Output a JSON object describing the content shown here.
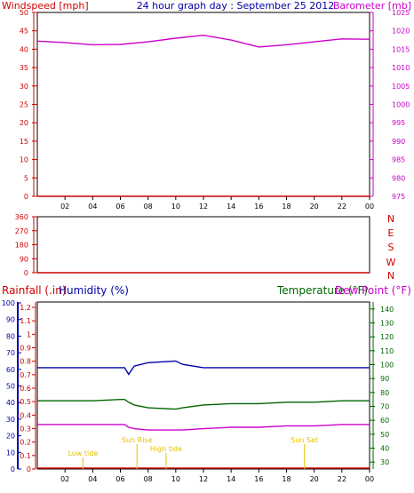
{
  "colors": {
    "red": "#cc0000",
    "blue": "#0000aa",
    "magenta": "#cc00cc",
    "green": "#006600",
    "pink": "#cc00cc",
    "yellow": "#e6c200",
    "grid": "#bbbbbb",
    "frame": "#000000"
  },
  "chart_data": [
    {
      "type": "line",
      "title": "24 hour graph day : September 25 2012",
      "ylabel": "Windspeed [mph]",
      "y2label": "Barometer [mb]",
      "x": [
        0,
        2,
        4,
        6,
        8,
        10,
        12,
        14,
        16,
        18,
        20,
        22,
        24
      ],
      "xticks": [
        "02",
        "04",
        "06",
        "08",
        "10",
        "12",
        "14",
        "16",
        "18",
        "20",
        "22",
        "00"
      ],
      "yticks": [
        "0",
        "5",
        "10",
        "15",
        "20",
        "25",
        "30",
        "35",
        "40",
        "45",
        "50"
      ],
      "y2ticks": [
        "975",
        "980",
        "985",
        "990",
        "995",
        "1000",
        "1005",
        "1010",
        "1015",
        "1020",
        "1025"
      ],
      "ylim": [
        0,
        50
      ],
      "y2lim": [
        975,
        1025
      ],
      "series": [
        {
          "axis": "y2",
          "color": "magenta",
          "values": [
            1017.2,
            1016.8,
            1016.2,
            1016.3,
            1017.0,
            1018.0,
            1018.8,
            1017.5,
            1015.6,
            1016.2,
            1017.0,
            1017.8,
            1017.7
          ]
        },
        {
          "axis": "y",
          "color": "red",
          "values": [
            0,
            0,
            0,
            0,
            0,
            0,
            0,
            0,
            0,
            0,
            0,
            0,
            0
          ]
        }
      ]
    },
    {
      "type": "line",
      "yticks": [
        "0",
        "90",
        "180",
        "270",
        "360"
      ],
      "ylim": [
        0,
        360
      ],
      "directions": [
        "N",
        "W",
        "S",
        "E",
        "N"
      ],
      "xticks": [
        "02",
        "04",
        "06",
        "08",
        "10",
        "12",
        "14",
        "16",
        "18",
        "20",
        "22",
        "00"
      ],
      "series": [
        {
          "color": "red",
          "values": [
            0,
            0,
            0,
            0,
            0,
            0,
            0,
            0,
            0,
            0,
            0,
            0,
            0
          ]
        }
      ]
    },
    {
      "type": "line",
      "ylabel": "Rainfall (.in)",
      "ylabel2": "Humidity (%)",
      "y2label": "Temperature (°F)",
      "y2label2": "Dew Point (°F)",
      "x": [
        0,
        2,
        4,
        6,
        6.3,
        6.6,
        7,
        8,
        10,
        10.5,
        12,
        14,
        16,
        18,
        20,
        22,
        24
      ],
      "xticks": [
        "02",
        "04",
        "06",
        "08",
        "10",
        "12",
        "14",
        "16",
        "18",
        "20",
        "22",
        "00"
      ],
      "humidity_ticks": [
        "0",
        "10",
        "20",
        "30",
        "40",
        "50",
        "60",
        "70",
        "80",
        "90",
        "100"
      ],
      "rain_ticks": [
        "0",
        "0.1",
        "0.2",
        "0.3",
        "0.4",
        "0.5",
        "0.6",
        "0.7",
        "0.8",
        "0.9",
        "1",
        "1.1",
        "1.2"
      ],
      "temp_ticks": [
        "30",
        "40",
        "50",
        "60",
        "70",
        "80",
        "90",
        "100",
        "110",
        "120",
        "130",
        "140"
      ],
      "humidity_lim": [
        0,
        100
      ],
      "temp_lim": [
        25,
        145
      ],
      "series": [
        {
          "axis": "humidity",
          "color": "blue",
          "values": [
            61,
            61,
            61,
            61,
            61,
            57,
            62,
            64,
            65,
            63,
            61,
            61,
            61,
            61,
            61,
            61,
            61
          ]
        },
        {
          "axis": "temp",
          "color": "green",
          "values": [
            74,
            74,
            74,
            75,
            75,
            73,
            71,
            69,
            68,
            69,
            71,
            72,
            72,
            73,
            73,
            74,
            74
          ]
        },
        {
          "axis": "temp",
          "color": "pink",
          "values": [
            57,
            57,
            57,
            57,
            57,
            55,
            54,
            53,
            53,
            53,
            54,
            55,
            55,
            56,
            56,
            57,
            57
          ]
        },
        {
          "axis": "rain",
          "color": "red",
          "values": [
            0,
            0,
            0,
            0,
            0,
            0,
            0,
            0,
            0,
            0,
            0,
            0,
            0,
            0,
            0,
            0,
            0
          ]
        }
      ],
      "annotations": [
        {
          "label": "Low tide",
          "x": 3.3
        },
        {
          "label": "Sun Rise",
          "x": 7.2
        },
        {
          "label": "High tide",
          "x": 9.3
        },
        {
          "label": "Sun Set",
          "x": 19.3
        }
      ]
    }
  ]
}
